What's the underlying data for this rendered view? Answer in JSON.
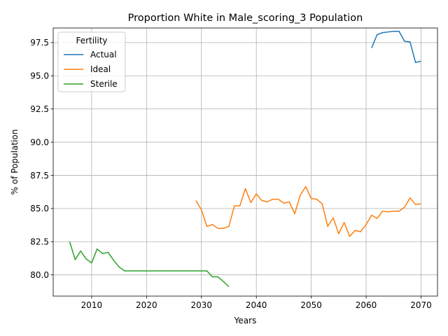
{
  "chart_data": {
    "type": "line",
    "title": "Proportion White in Male_scoring_3 Population",
    "xlabel": "Years",
    "ylabel": "% of Population",
    "xlim": [
      2003,
      2073
    ],
    "ylim": [
      78.4,
      98.6
    ],
    "xticks": [
      2010,
      2020,
      2030,
      2040,
      2050,
      2060,
      2070
    ],
    "yticks": [
      80.0,
      82.5,
      85.0,
      87.5,
      90.0,
      92.5,
      95.0,
      97.5
    ],
    "grid": true,
    "legend": {
      "title": "Fertility",
      "placement": "top-left"
    },
    "series": [
      {
        "name": "Actual",
        "color": "#1f77b4",
        "x": [
          2061,
          2062,
          2063,
          2064,
          2065,
          2066,
          2067,
          2068,
          2069,
          2070
        ],
        "y": [
          97.1,
          98.1,
          98.25,
          98.3,
          98.35,
          98.35,
          97.6,
          97.55,
          96.0,
          96.1
        ]
      },
      {
        "name": "Ideal",
        "color": "#ff7f0e",
        "x": [
          2029,
          2030,
          2031,
          2032,
          2033,
          2034,
          2035,
          2036,
          2037,
          2038,
          2039,
          2040,
          2041,
          2042,
          2043,
          2044,
          2045,
          2046,
          2047,
          2048,
          2049,
          2050,
          2051,
          2052,
          2053,
          2054,
          2055,
          2056,
          2057,
          2058,
          2059,
          2060,
          2061,
          2062,
          2063,
          2064,
          2065,
          2066,
          2067,
          2068,
          2069,
          2070
        ],
        "y": [
          85.6,
          84.9,
          83.65,
          83.8,
          83.5,
          83.5,
          83.65,
          85.2,
          85.2,
          86.5,
          85.45,
          86.1,
          85.6,
          85.5,
          85.7,
          85.7,
          85.4,
          85.5,
          84.6,
          86.0,
          86.65,
          85.75,
          85.7,
          85.35,
          83.65,
          84.3,
          83.1,
          83.95,
          82.9,
          83.35,
          83.25,
          83.8,
          84.5,
          84.25,
          84.8,
          84.75,
          84.8,
          84.8,
          85.1,
          85.8,
          85.3,
          85.35
        ]
      },
      {
        "name": "Sterile",
        "color": "#2ca02c",
        "x": [
          2006,
          2007,
          2008,
          2009,
          2010,
          2011,
          2012,
          2013,
          2014,
          2015,
          2016,
          2017,
          2018,
          2019,
          2020,
          2021,
          2022,
          2023,
          2024,
          2025,
          2026,
          2027,
          2028,
          2029,
          2030,
          2031,
          2032,
          2033,
          2034,
          2035
        ],
        "y": [
          82.5,
          81.15,
          81.8,
          81.2,
          80.9,
          81.95,
          81.6,
          81.7,
          81.1,
          80.6,
          80.3,
          80.3,
          80.3,
          80.3,
          80.3,
          80.3,
          80.3,
          80.3,
          80.3,
          80.3,
          80.3,
          80.3,
          80.3,
          80.3,
          80.3,
          80.3,
          79.85,
          79.85,
          79.5,
          79.1
        ]
      }
    ]
  }
}
